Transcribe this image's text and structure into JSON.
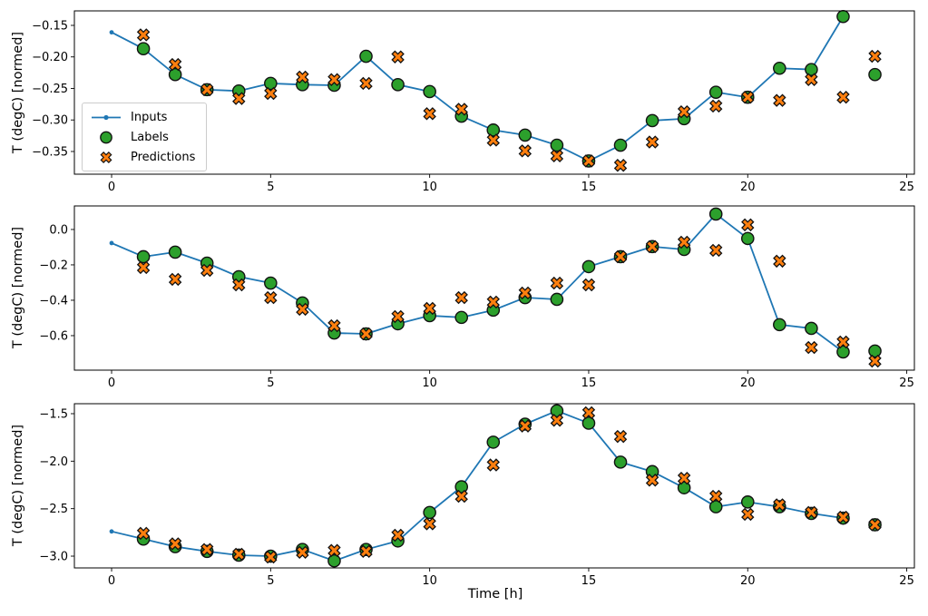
{
  "figure": {
    "xlabel": "Time [h]",
    "ylabel": "T (degC) [normed]",
    "colors": {
      "inputs": "#1f77b4",
      "labels": "#2ca02c",
      "predictions": "#ff7f0e",
      "marker_edge": "#111111",
      "spine": "#000000",
      "legend_border": "#cccccc"
    },
    "legend": [
      {
        "label": "Inputs",
        "series": "inputs",
        "marker": "line-dot"
      },
      {
        "label": "Labels",
        "series": "labels",
        "marker": "circle"
      },
      {
        "label": "Predictions",
        "series": "predictions",
        "marker": "x"
      }
    ]
  },
  "chart_data": [
    {
      "type": "line",
      "ylabel": "T (degC) [normed]",
      "xlim": [
        -1.17,
        25.24
      ],
      "ylim": [
        -0.386,
        -0.127
      ],
      "x_ticks": [
        0,
        5,
        10,
        15,
        20,
        25
      ],
      "x_tick_labels": [
        "0",
        "5",
        "10",
        "15",
        "20",
        "25"
      ],
      "y_ticks": [
        -0.15,
        -0.2,
        -0.25,
        -0.3,
        -0.35
      ],
      "y_tick_labels": [
        "−0.15",
        "−0.20",
        "−0.25",
        "−0.30",
        "−0.35"
      ],
      "grid": false,
      "legend_visible": true,
      "legend_position": "center left",
      "series": [
        {
          "name": "Inputs",
          "kind": "line",
          "x": [
            0,
            1,
            2,
            3,
            4,
            5,
            6,
            7,
            8,
            9,
            10,
            11,
            12,
            13,
            14,
            15,
            16,
            17,
            18,
            19,
            20,
            21,
            22,
            23
          ],
          "y": [
            -0.161,
            -0.187,
            -0.228,
            -0.252,
            -0.254,
            -0.242,
            -0.244,
            -0.245,
            -0.199,
            -0.244,
            -0.255,
            -0.294,
            -0.316,
            -0.324,
            -0.34,
            -0.365,
            -0.34,
            -0.301,
            -0.298,
            -0.256,
            -0.264,
            -0.218,
            -0.22,
            -0.136
          ]
        },
        {
          "name": "Labels",
          "kind": "circle",
          "x": [
            1,
            2,
            3,
            4,
            5,
            6,
            7,
            8,
            9,
            10,
            11,
            12,
            13,
            14,
            15,
            16,
            17,
            18,
            19,
            20,
            21,
            22,
            23,
            24
          ],
          "y": [
            -0.187,
            -0.228,
            -0.252,
            -0.254,
            -0.242,
            -0.244,
            -0.245,
            -0.199,
            -0.244,
            -0.255,
            -0.294,
            -0.316,
            -0.324,
            -0.34,
            -0.365,
            -0.34,
            -0.301,
            -0.298,
            -0.256,
            -0.264,
            -0.218,
            -0.22,
            -0.136,
            -0.228
          ]
        },
        {
          "name": "Predictions",
          "kind": "x",
          "x": [
            1,
            2,
            3,
            4,
            5,
            6,
            7,
            8,
            9,
            10,
            11,
            12,
            13,
            14,
            15,
            16,
            17,
            18,
            19,
            20,
            21,
            22,
            23,
            24
          ],
          "y": [
            -0.165,
            -0.212,
            -0.252,
            -0.266,
            -0.258,
            -0.232,
            -0.236,
            -0.242,
            -0.2,
            -0.29,
            -0.283,
            -0.332,
            -0.349,
            -0.357,
            -0.365,
            -0.372,
            -0.335,
            -0.287,
            -0.278,
            -0.264,
            -0.269,
            -0.236,
            -0.264,
            -0.199
          ]
        }
      ]
    },
    {
      "type": "line",
      "ylabel": "T (degC) [normed]",
      "xlim": [
        -1.17,
        25.24
      ],
      "ylim": [
        -0.795,
        0.133
      ],
      "x_ticks": [
        0,
        5,
        10,
        15,
        20,
        25
      ],
      "x_tick_labels": [
        "0",
        "5",
        "10",
        "15",
        "20",
        "25"
      ],
      "y_ticks": [
        0.0,
        -0.2,
        -0.4,
        -0.6
      ],
      "y_tick_labels": [
        "0.0",
        "−0.2",
        "−0.4",
        "−0.6"
      ],
      "grid": false,
      "legend_visible": false,
      "series": [
        {
          "name": "Inputs",
          "kind": "line",
          "x": [
            0,
            1,
            2,
            3,
            4,
            5,
            6,
            7,
            8,
            9,
            10,
            11,
            12,
            13,
            14,
            15,
            16,
            17,
            18,
            19,
            20,
            21,
            22,
            23
          ],
          "y": [
            -0.077,
            -0.154,
            -0.128,
            -0.19,
            -0.267,
            -0.303,
            -0.415,
            -0.585,
            -0.59,
            -0.533,
            -0.487,
            -0.497,
            -0.456,
            -0.385,
            -0.395,
            -0.21,
            -0.154,
            -0.097,
            -0.113,
            0.087,
            -0.051,
            -0.538,
            -0.559,
            -0.692
          ]
        },
        {
          "name": "Labels",
          "kind": "circle",
          "x": [
            1,
            2,
            3,
            4,
            5,
            6,
            7,
            8,
            9,
            10,
            11,
            12,
            13,
            14,
            15,
            16,
            17,
            18,
            19,
            20,
            21,
            22,
            23,
            24
          ],
          "y": [
            -0.154,
            -0.128,
            -0.19,
            -0.267,
            -0.303,
            -0.415,
            -0.585,
            -0.59,
            -0.533,
            -0.487,
            -0.497,
            -0.456,
            -0.385,
            -0.395,
            -0.21,
            -0.154,
            -0.097,
            -0.113,
            0.087,
            -0.051,
            -0.538,
            -0.559,
            -0.692,
            -0.687
          ]
        },
        {
          "name": "Predictions",
          "kind": "x",
          "x": [
            1,
            2,
            3,
            4,
            5,
            6,
            7,
            8,
            9,
            10,
            11,
            12,
            13,
            14,
            15,
            16,
            17,
            18,
            19,
            20,
            21,
            22,
            23,
            24
          ],
          "y": [
            -0.215,
            -0.282,
            -0.231,
            -0.313,
            -0.385,
            -0.451,
            -0.544,
            -0.59,
            -0.492,
            -0.446,
            -0.385,
            -0.41,
            -0.359,
            -0.303,
            -0.313,
            -0.154,
            -0.097,
            -0.072,
            -0.118,
            0.026,
            -0.179,
            -0.667,
            -0.636,
            -0.744
          ]
        }
      ]
    },
    {
      "type": "line",
      "ylabel": "T (degC) [normed]",
      "xlabel": "Time [h]",
      "xlim": [
        -1.17,
        25.24
      ],
      "ylim": [
        -3.124,
        -1.395
      ],
      "x_ticks": [
        0,
        5,
        10,
        15,
        20,
        25
      ],
      "x_tick_labels": [
        "0",
        "5",
        "10",
        "15",
        "20",
        "25"
      ],
      "y_ticks": [
        -1.5,
        -2.0,
        -2.5,
        -3.0
      ],
      "y_tick_labels": [
        "−1.5",
        "−2.0",
        "−2.5",
        "−3.0"
      ],
      "grid": false,
      "legend_visible": false,
      "series": [
        {
          "name": "Inputs",
          "kind": "line",
          "x": [
            0,
            1,
            2,
            3,
            4,
            5,
            6,
            7,
            8,
            9,
            10,
            11,
            12,
            13,
            14,
            15,
            16,
            17,
            18,
            19,
            20,
            21,
            22,
            23
          ],
          "y": [
            -2.74,
            -2.82,
            -2.9,
            -2.95,
            -2.99,
            -3.0,
            -2.93,
            -3.05,
            -2.93,
            -2.84,
            -2.54,
            -2.27,
            -1.8,
            -1.61,
            -1.47,
            -1.6,
            -2.01,
            -2.11,
            -2.28,
            -2.48,
            -2.43,
            -2.48,
            -2.55,
            -2.6
          ]
        },
        {
          "name": "Labels",
          "kind": "circle",
          "x": [
            1,
            2,
            3,
            4,
            5,
            6,
            7,
            8,
            9,
            10,
            11,
            12,
            13,
            14,
            15,
            16,
            17,
            18,
            19,
            20,
            21,
            22,
            23,
            24
          ],
          "y": [
            -2.82,
            -2.9,
            -2.95,
            -2.99,
            -3.0,
            -2.93,
            -3.05,
            -2.93,
            -2.84,
            -2.54,
            -2.27,
            -1.8,
            -1.61,
            -1.47,
            -1.6,
            -2.01,
            -2.11,
            -2.28,
            -2.48,
            -2.43,
            -2.48,
            -2.55,
            -2.6,
            -2.67
          ]
        },
        {
          "name": "Predictions",
          "kind": "x",
          "x": [
            1,
            2,
            3,
            4,
            5,
            6,
            7,
            8,
            9,
            10,
            11,
            12,
            13,
            14,
            15,
            16,
            17,
            18,
            19,
            20,
            21,
            22,
            23,
            24
          ],
          "y": [
            -2.76,
            -2.87,
            -2.93,
            -2.98,
            -3.01,
            -2.96,
            -2.94,
            -2.95,
            -2.78,
            -2.66,
            -2.37,
            -2.04,
            -1.63,
            -1.57,
            -1.49,
            -1.74,
            -2.2,
            -2.18,
            -2.37,
            -2.56,
            -2.46,
            -2.54,
            -2.59,
            -2.67
          ]
        }
      ]
    }
  ]
}
